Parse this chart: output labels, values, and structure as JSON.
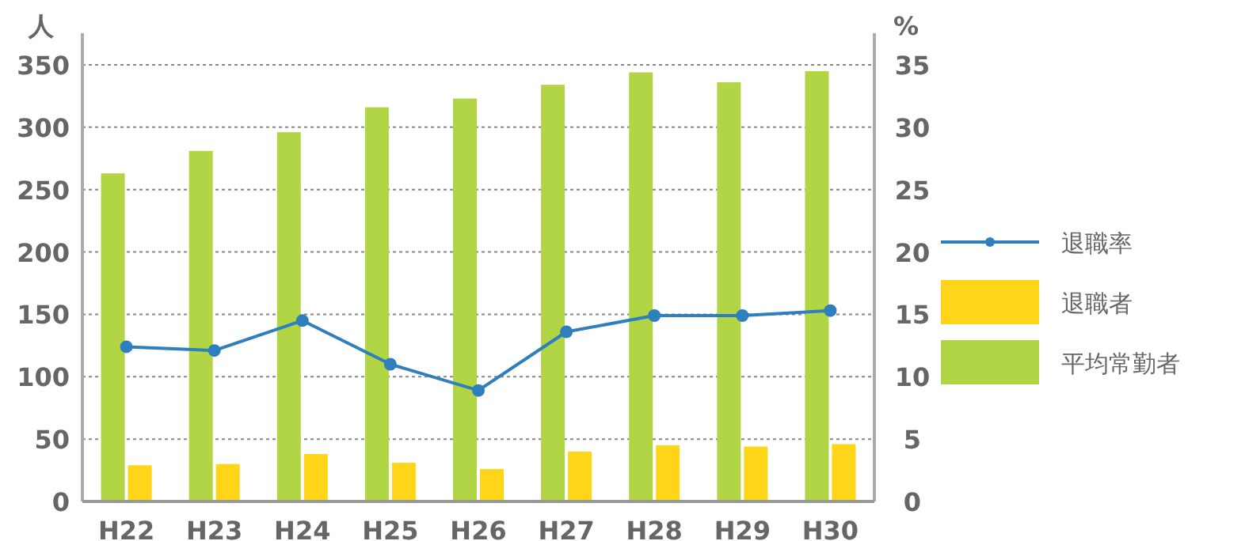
{
  "chart_data": {
    "type": "bar",
    "ylabel": "人",
    "y2label": "%",
    "categories": [
      "H22",
      "H23",
      "H24",
      "H25",
      "H26",
      "H27",
      "H28",
      "H29",
      "H30"
    ],
    "series": [
      {
        "name": "退職率",
        "type": "line",
        "axis": "y2",
        "color": "#2f7fbf",
        "marker": "circle",
        "values": [
          12.4,
          12.1,
          14.5,
          11.0,
          8.9,
          13.6,
          14.9,
          14.9,
          15.3
        ]
      },
      {
        "name": "退職者",
        "color": "#ffd519",
        "values": [
          29,
          30,
          38,
          31,
          26,
          40,
          45,
          44,
          46
        ]
      },
      {
        "name": "平均常勤者",
        "color": "#b2d545",
        "values": [
          263,
          281,
          296,
          316,
          323,
          334,
          344,
          336,
          345
        ]
      }
    ],
    "ylim": [
      0,
      350
    ],
    "yticks": [
      0,
      50,
      100,
      150,
      200,
      250,
      300,
      350
    ],
    "y2lim": [
      0,
      35
    ],
    "y2ticks": [
      0,
      5,
      10,
      15,
      20,
      25,
      30,
      35
    ],
    "grid": "y",
    "legend": "right"
  }
}
